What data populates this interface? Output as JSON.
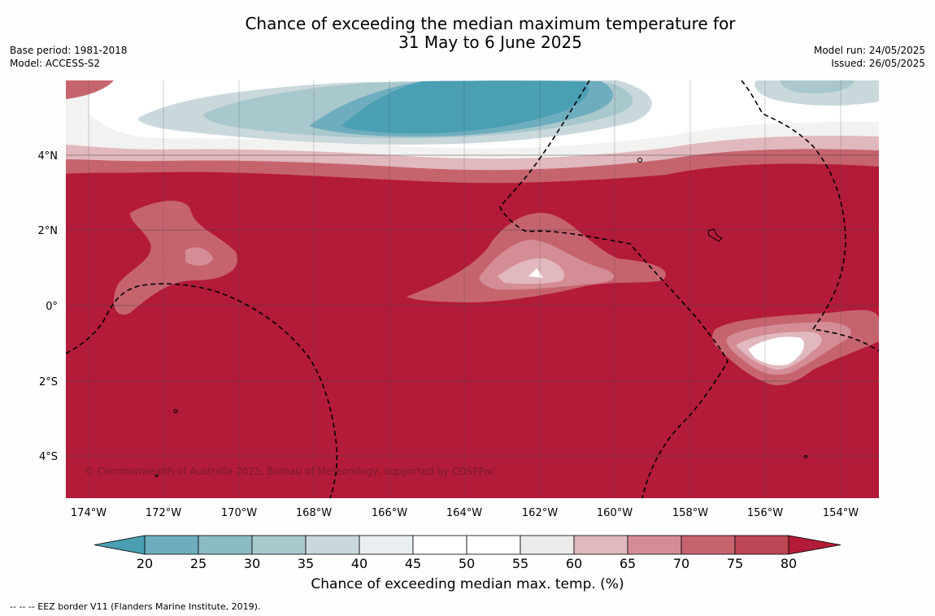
{
  "title": {
    "line1": "Chance of exceeding the median maximum temperature for",
    "line2": "31 May to 6 June 2025"
  },
  "meta_left": {
    "base_period": "Base period: 1981-2018",
    "model": "Model: ACCESS-S2"
  },
  "meta_right": {
    "model_run": "Model run: 24/05/2025",
    "issued": "Issued: 26/05/2025"
  },
  "map": {
    "lat_labels": [
      "4°N",
      "2°N",
      "0°",
      "2°S",
      "4°S"
    ],
    "lon_labels": [
      "174°W",
      "172°W",
      "170°W",
      "168°W",
      "166°W",
      "164°W",
      "162°W",
      "160°W",
      "158°W",
      "156°W",
      "154°W"
    ],
    "copyright": "© Commonwealth of Australia 2025, Bureau of Meteorology, supported by COSPPac"
  },
  "colorbar": {
    "ticks": [
      "20",
      "25",
      "30",
      "35",
      "40",
      "45",
      "50",
      "55",
      "60",
      "65",
      "70",
      "75",
      "80"
    ],
    "colors": [
      "#4a9fb3",
      "#6eadbd",
      "#8bbcc6",
      "#a9c8ce",
      "#c9d8db",
      "#e9eff0",
      "#ffffff",
      "#ffffff",
      "#ececea",
      "#e1b8bd",
      "#d48c95",
      "#c6646e",
      "#bc4653",
      "#b31b38"
    ],
    "label": "Chance of exceeding median max. temp. (%)"
  },
  "footnote": "--  --  -- EEZ border V11 (Flanders Marine Institute, 2019)."
}
